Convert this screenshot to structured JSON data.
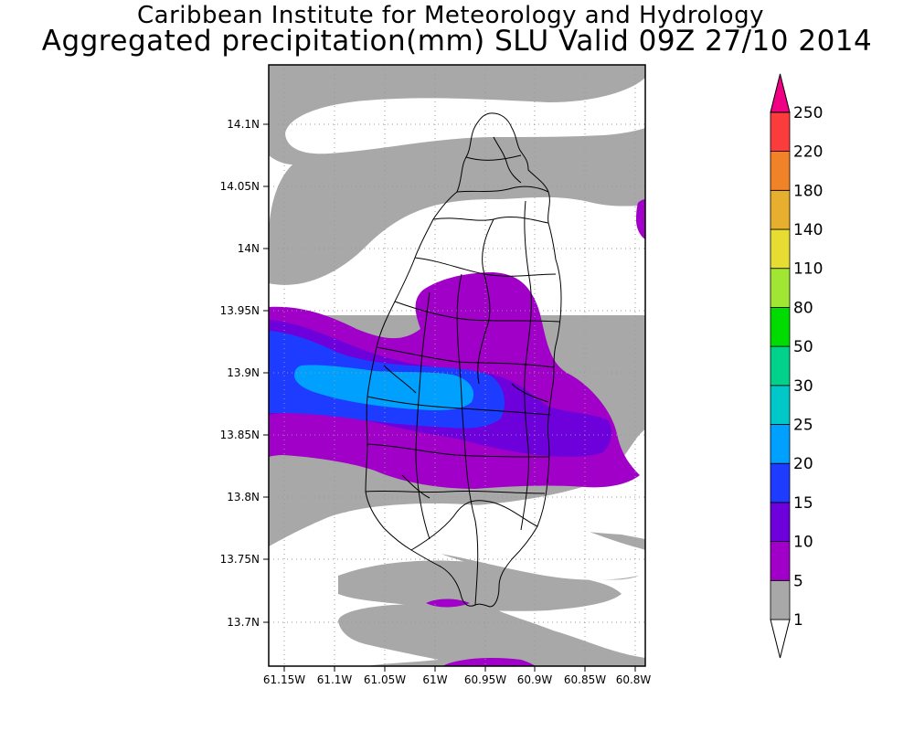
{
  "header": {
    "institute": "Caribbean Institute for Meteorology and Hydrology",
    "title": "Aggregated precipitation(mm) SLU Valid 09Z 27/10 2014"
  },
  "map": {
    "region": "Saint Lucia",
    "lon_range": [
      -61.165,
      -60.79
    ],
    "lat_range": [
      13.665,
      14.145
    ],
    "lat_ticks": [
      "14.1N",
      "14.05N",
      "14N",
      "13.95N",
      "13.9N",
      "13.85N",
      "13.8N",
      "13.75N",
      "13.7N"
    ],
    "lon_ticks": [
      "61.15W",
      "61.1W",
      "61.05W",
      "61W",
      "60.95W",
      "60.9W",
      "60.85W",
      "60.8W"
    ],
    "grid": true,
    "fill_colors": {
      "1-5": "#a8a8a8",
      "5-10": "#a000c8",
      "10-15": "#6e00dc",
      "15-20": "#1e3cff",
      "20-25": "#00a0ff"
    }
  },
  "colorbar": {
    "levels": [
      "1",
      "5",
      "10",
      "15",
      "20",
      "25",
      "30",
      "50",
      "80",
      "110",
      "140",
      "180",
      "220",
      "250"
    ],
    "colors": [
      "#a8a8a8",
      "#a000c8",
      "#6e00dc",
      "#1e3cff",
      "#00a0ff",
      "#00c8c8",
      "#00d28c",
      "#00dc00",
      "#a0e632",
      "#e6dc32",
      "#e6af2d",
      "#f08228",
      "#fa3c3c",
      "#f00082"
    ],
    "below_color": "#ffffff"
  }
}
